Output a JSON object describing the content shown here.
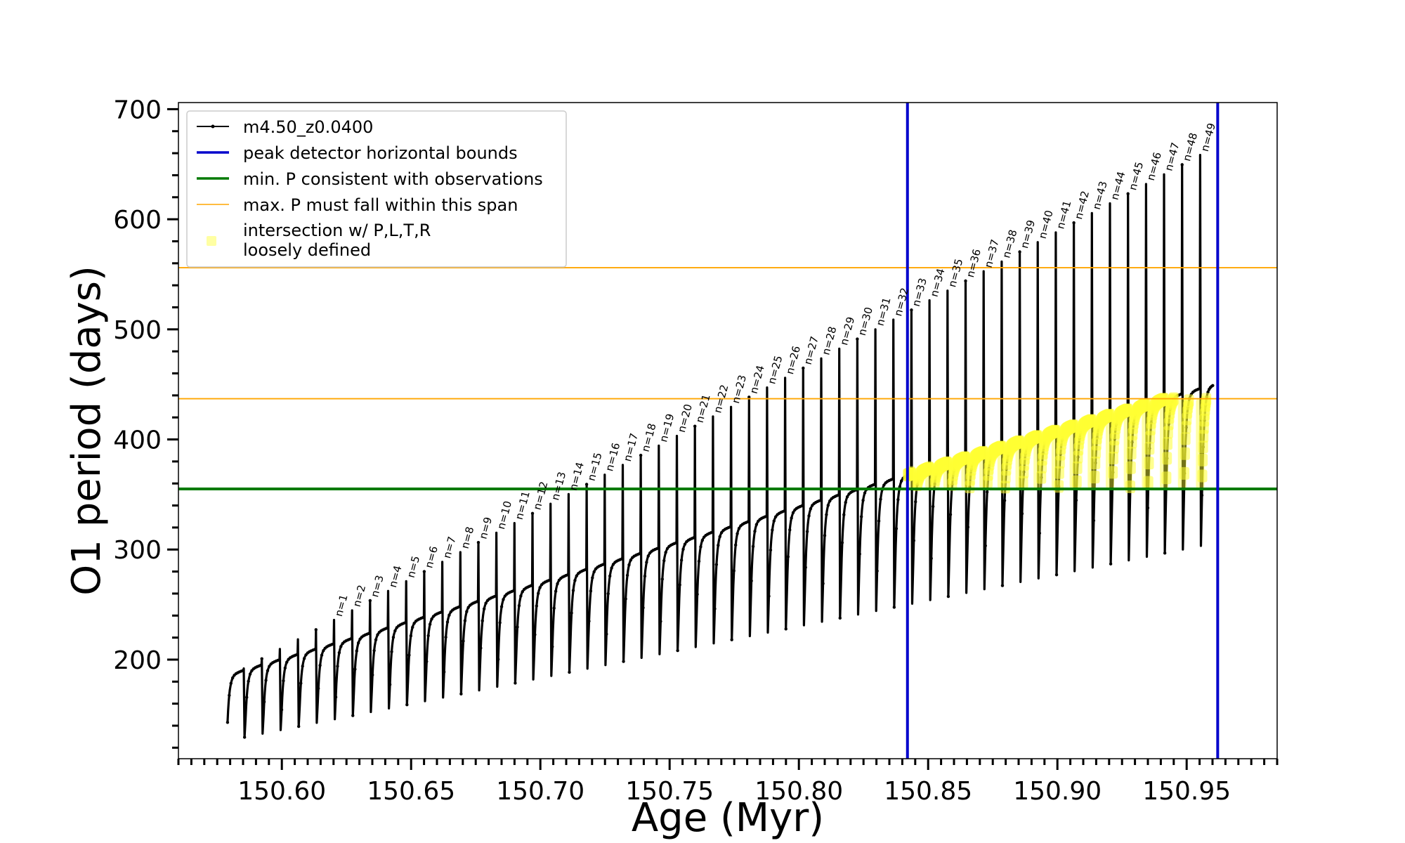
{
  "chart_data": {
    "type": "line",
    "xlabel": "Age (Myr)",
    "ylabel": "O1 period (days)",
    "xlim": [
      150.56,
      150.985
    ],
    "ylim": [
      110,
      706
    ],
    "xticks_major": [
      150.6,
      150.65,
      150.7,
      150.75,
      150.8,
      150.85,
      150.9,
      150.95
    ],
    "xtick_labels": [
      "150.60",
      "150.65",
      "150.70",
      "150.75",
      "150.80",
      "150.85",
      "150.90",
      "150.95"
    ],
    "xtick_minor_step": 0.005,
    "yticks_major": [
      200,
      300,
      400,
      500,
      600,
      700
    ],
    "ytick_labels": [
      "200",
      "300",
      "400",
      "500",
      "600",
      "700"
    ],
    "ytick_minor_step": 20,
    "legend_position": "upper-left",
    "legend": [
      {
        "label": "m4.50_z0.0400",
        "color": "#000000",
        "kind": "line-marker"
      },
      {
        "label": "peak detector horizontal bounds",
        "color": "#0000cc",
        "kind": "line"
      },
      {
        "label": "min. P consistent with observations",
        "color": "#007a00",
        "kind": "line"
      },
      {
        "label": "max. P must fall within this span",
        "color": "#ffa500",
        "kind": "line"
      },
      {
        "label": "intersection w/ P,L,T,R",
        "label_line2": "loosely defined",
        "color": "#ffff66",
        "kind": "marker"
      }
    ],
    "reference_lines": {
      "vertical_blue_x": [
        150.842,
        150.962
      ],
      "horizontal_green_y": 355,
      "horizontal_orange_y": [
        437,
        556
      ]
    },
    "series": {
      "name": "m4.50_z0.0400",
      "x_start": 150.579,
      "pulse_spacing": 0.00698,
      "pulse_count": 55,
      "first_numbered_pulse_index": 5,
      "base_start": 165,
      "base_slope": 4.48,
      "bump_start": 20,
      "bump_slope": 0.35,
      "spike_start": 192,
      "spike_slope": 8.8,
      "drop_start": 40,
      "drop_slope": 1.2
    },
    "peak_labels": [
      "n=1",
      "n=2",
      "n=3",
      "n=4",
      "n=5",
      "n=6",
      "n=7",
      "n=8",
      "n=9",
      "n=10",
      "n=11",
      "n=12",
      "n=13",
      "n=14",
      "n=15",
      "n=16",
      "n=17",
      "n=18",
      "n=19",
      "n=20",
      "n=21",
      "n=22",
      "n=23",
      "n=24",
      "n=25",
      "n=26",
      "n=27",
      "n=28",
      "n=29",
      "n=30",
      "n=31",
      "n=32",
      "n=33",
      "n=34",
      "n=35",
      "n=36",
      "n=37",
      "n=38",
      "n=39",
      "n=40",
      "n=41",
      "n=42",
      "n=43",
      "n=44",
      "n=45",
      "n=46",
      "n=47",
      "n=48",
      "n=49"
    ],
    "intersection": {
      "x_range": [
        150.842,
        150.962
      ],
      "y_min": 355
    }
  }
}
